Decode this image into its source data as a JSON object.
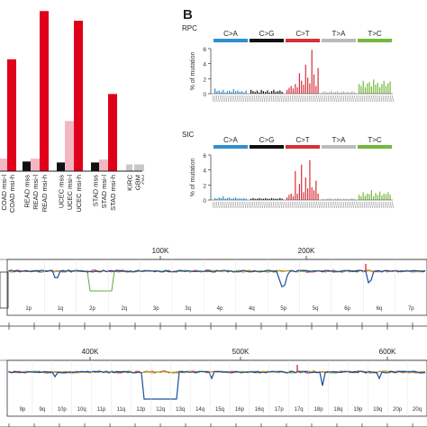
{
  "panel_b": {
    "letter": "B",
    "spectra": [
      {
        "label": "RPC",
        "ylabel": "% of mutation"
      },
      {
        "label": "SIC",
        "ylabel": "% of mutation"
      }
    ],
    "bar_mutation_types": [
      "C>A",
      "C>G",
      "C>T",
      "T>A",
      "T>C"
    ],
    "yticks": [
      "0",
      "2",
      "4",
      "6"
    ],
    "colors": {
      "C>A": "#2e8fd0",
      "C>G": "#111111",
      "C>T": "#d6303a",
      "T>A": "#bbbbbb",
      "T>C": "#74b83e"
    }
  },
  "chart_data": [
    {
      "type": "bar",
      "title": "",
      "categories": [
        "COAD msi-l",
        "COAD msi-h",
        "READ mss",
        "READ msi-l",
        "READ msi-h",
        "UCEC mss",
        "UCEC msi-l",
        "UCEC msi-h",
        "STAD mss",
        "STAD msi-l",
        "STAD msi-h",
        "KIRC",
        "GBM",
        "OV",
        "BRCA"
      ],
      "category_labels": [
        "COAD msi-l",
        "COAD msi-h",
        "READ mss",
        "READ msi-l",
        "READ msi-h",
        "UCEC mss",
        "UCEC msi-l",
        "UCEC msi-h",
        "STAD mss",
        "STAD msi-l",
        "STAD msi-h",
        "KIRC",
        "GBM",
        "OV",
        "BRCA"
      ],
      "values": [
        6.5,
        58,
        5,
        6.5,
        83,
        4.5,
        26,
        78,
        4.5,
        6,
        40,
        3.5,
        3.5,
        3.5,
        3
      ],
      "colors": [
        "#f2b7c3",
        "#e0001b",
        "#111111",
        "#f2b7c3",
        "#e0001b",
        "#111111",
        "#f2b7c3",
        "#e0001b",
        "#111111",
        "#f2b7c3",
        "#e0001b",
        "#c8c8c8",
        "#c8c8c8",
        "#c8c8c8",
        "#c8c8c8"
      ]
    },
    {
      "type": "bar",
      "title": "RPC",
      "series": [
        {
          "name": "C>A",
          "values": [
            0.8,
            0.4,
            0.5,
            0.3,
            0.6,
            0.2,
            0.4,
            0.5,
            0.3,
            0.7,
            0.4,
            0.5,
            0.3,
            0.4,
            0.2,
            0.5
          ]
        },
        {
          "name": "C>G",
          "values": [
            0.6,
            0.4,
            0.3,
            0.5,
            0.2,
            0.6,
            0.4,
            0.3,
            0.5,
            0.2,
            0.4,
            0.6,
            0.3,
            0.4,
            0.5,
            0.3
          ]
        },
        {
          "name": "C>T",
          "values": [
            0.6,
            0.9,
            1.2,
            0.8,
            1.5,
            1.0,
            3.2,
            2.0,
            1.4,
            4.5,
            2.5,
            1.6,
            6.8,
            3.0,
            1.2,
            4.0
          ]
        },
        {
          "name": "T>A",
          "values": [
            0.3,
            0.4,
            0.2,
            0.3,
            0.5,
            0.2,
            0.3,
            0.4,
            0.2,
            0.3,
            0.4,
            0.2,
            0.3,
            0.2,
            0.4,
            0.3
          ]
        },
        {
          "name": "T>C",
          "values": [
            1.5,
            1.2,
            2.0,
            1.0,
            1.6,
            1.8,
            1.1,
            2.2,
            1.4,
            1.7,
            1.0,
            1.5,
            2.0,
            1.2,
            1.6,
            1.9
          ]
        }
      ],
      "ylim": [
        0,
        7
      ],
      "ylabel": "% of mutation"
    },
    {
      "type": "bar",
      "title": "SIC",
      "series": [
        {
          "name": "C>A",
          "values": [
            0.3,
            0.2,
            0.4,
            0.3,
            0.6,
            0.2,
            0.3,
            0.4,
            0.2,
            0.3,
            0.4,
            0.2,
            0.3,
            0.2,
            0.3,
            0.2
          ]
        },
        {
          "name": "C>G",
          "values": [
            0.2,
            0.3,
            0.2,
            0.2,
            0.3,
            0.2,
            0.2,
            0.3,
            0.2,
            0.2,
            0.3,
            0.2,
            0.2,
            0.2,
            0.3,
            0.2
          ]
        },
        {
          "name": "C>T",
          "values": [
            0.4,
            0.8,
            1.0,
            0.6,
            4.5,
            1.0,
            2.5,
            5.5,
            1.2,
            3.5,
            1.8,
            6.2,
            2.0,
            1.5,
            3.0,
            1.0
          ]
        },
        {
          "name": "T>A",
          "values": [
            0.2,
            0.1,
            0.2,
            0.3,
            0.2,
            0.1,
            0.2,
            0.3,
            0.2,
            0.1,
            0.2,
            0.2,
            0.1,
            0.2,
            0.3,
            0.2
          ]
        },
        {
          "name": "T>C",
          "values": [
            0.8,
            0.6,
            1.2,
            0.7,
            1.0,
            0.9,
            1.5,
            0.6,
            1.1,
            0.8,
            1.3,
            0.7,
            1.0,
            0.9,
            1.2,
            0.8
          ]
        }
      ],
      "ylim": [
        0,
        7
      ],
      "ylabel": "% of mutation"
    }
  ],
  "panel_c": {
    "tracks": [
      {
        "position_ticks": [
          "100K",
          "200K"
        ],
        "chrom_labels": [
          "1p",
          "1q",
          "2p",
          "2q",
          "3p",
          "3q",
          "4p",
          "4q",
          "5p",
          "5q",
          "6p",
          "6q",
          "7p"
        ]
      },
      {
        "position_ticks": [
          "400K",
          "500K",
          "600K"
        ],
        "chrom_labels": [
          "9p",
          "9q",
          "10p",
          "10q",
          "11p",
          "11q",
          "12p",
          "12q",
          "13q",
          "14q",
          "15q",
          "16p",
          "16q",
          "17p",
          "17q",
          "18p",
          "18q",
          "19p",
          "19q",
          "20p",
          "20q"
        ]
      }
    ],
    "line_colors": {
      "blue": "#1a4fa0",
      "green": "#5cb03a",
      "red": "#d6303a",
      "orange": "#f0a020"
    }
  }
}
